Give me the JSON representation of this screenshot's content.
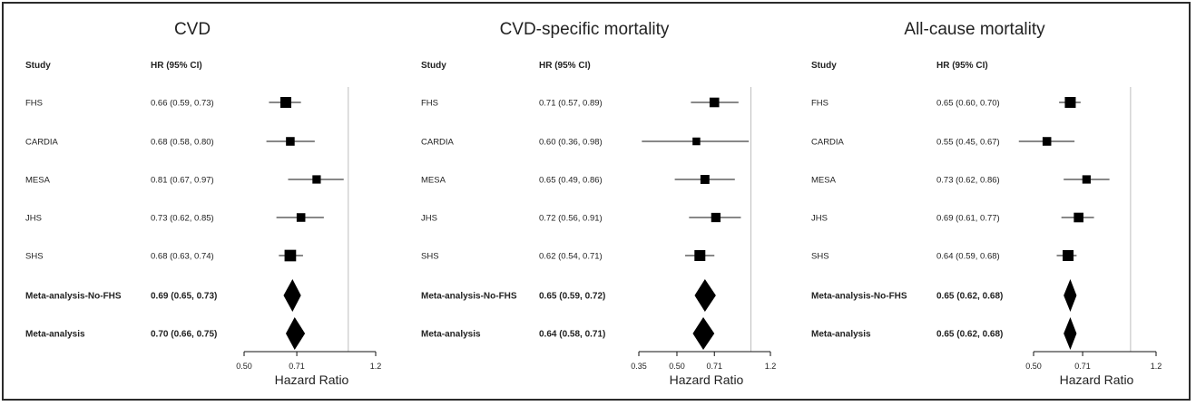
{
  "chart_data": [
    {
      "type": "forest",
      "title": "CVD",
      "col_study": "Study",
      "col_hr": "HR (95% CI)",
      "xlabel": "Hazard Ratio",
      "xlim": [
        0.5,
        1.2
      ],
      "xticks": [
        0.5,
        0.71,
        1.2
      ],
      "xtick_labels": [
        "0.50",
        "0.71",
        "1.2"
      ],
      "reference_line": 1.0,
      "rows": [
        {
          "study": "FHS",
          "label": "0.66 (0.59, 0.73)",
          "hr": 0.66,
          "lo": 0.59,
          "hi": 0.73,
          "kind": "study",
          "weight": 1.0
        },
        {
          "study": "CARDIA",
          "label": "0.68 (0.58, 0.80)",
          "hr": 0.68,
          "lo": 0.58,
          "hi": 0.8,
          "kind": "study",
          "weight": 0.65
        },
        {
          "study": "MESA",
          "label": "0.81 (0.67, 0.97)",
          "hr": 0.81,
          "lo": 0.67,
          "hi": 0.97,
          "kind": "study",
          "weight": 0.6
        },
        {
          "study": "JHS",
          "label": "0.73 (0.62, 0.85)",
          "hr": 0.73,
          "lo": 0.62,
          "hi": 0.85,
          "kind": "study",
          "weight": 0.65
        },
        {
          "study": "SHS",
          "label": "0.68 (0.63, 0.74)",
          "hr": 0.68,
          "lo": 0.63,
          "hi": 0.74,
          "kind": "study",
          "weight": 1.1
        },
        {
          "study": "Meta-analysis-No-FHS",
          "label": "0.69 (0.65, 0.73)",
          "hr": 0.69,
          "lo": 0.65,
          "hi": 0.73,
          "kind": "summary"
        },
        {
          "study": "Meta-analysis",
          "label": "0.70 (0.66, 0.75)",
          "hr": 0.7,
          "lo": 0.66,
          "hi": 0.75,
          "kind": "summary"
        }
      ]
    },
    {
      "type": "forest",
      "title": "CVD-specific mortality",
      "col_study": "Study",
      "col_hr": "HR (95% CI)",
      "xlabel": "Hazard Ratio",
      "xlim": [
        0.35,
        1.2
      ],
      "xticks": [
        0.35,
        0.5,
        0.71,
        1.2
      ],
      "xtick_labels": [
        "0.35",
        "0.50",
        "0.71",
        "1.2"
      ],
      "reference_line": 1.0,
      "rows": [
        {
          "study": "FHS",
          "label": "0.71 (0.57, 0.89)",
          "hr": 0.71,
          "lo": 0.57,
          "hi": 0.89,
          "kind": "study",
          "weight": 0.8
        },
        {
          "study": "CARDIA",
          "label": "0.60 (0.36, 0.98)",
          "hr": 0.6,
          "lo": 0.36,
          "hi": 0.98,
          "kind": "study",
          "weight": 0.5
        },
        {
          "study": "MESA",
          "label": "0.65 (0.49, 0.86)",
          "hr": 0.65,
          "lo": 0.49,
          "hi": 0.86,
          "kind": "study",
          "weight": 0.7
        },
        {
          "study": "JHS",
          "label": "0.72 (0.56, 0.91)",
          "hr": 0.72,
          "lo": 0.56,
          "hi": 0.91,
          "kind": "study",
          "weight": 0.75
        },
        {
          "study": "SHS",
          "label": "0.62 (0.54, 0.71)",
          "hr": 0.62,
          "lo": 0.54,
          "hi": 0.71,
          "kind": "study",
          "weight": 1.0
        },
        {
          "study": "Meta-analysis-No-FHS",
          "label": "0.65 (0.59, 0.72)",
          "hr": 0.65,
          "lo": 0.59,
          "hi": 0.72,
          "kind": "summary"
        },
        {
          "study": "Meta-analysis",
          "label": "0.64 (0.58, 0.71)",
          "hr": 0.64,
          "lo": 0.58,
          "hi": 0.71,
          "kind": "summary"
        }
      ]
    },
    {
      "type": "forest",
      "title": "All-cause mortality",
      "col_study": "Study",
      "col_hr": "HR (95% CI)",
      "xlabel": "Hazard Ratio",
      "xlim": [
        0.5,
        1.2
      ],
      "xticks": [
        0.5,
        0.71,
        1.2
      ],
      "xtick_labels": [
        "0.50",
        "0.71",
        "1.2"
      ],
      "reference_line": 1.0,
      "rows": [
        {
          "study": "FHS",
          "label": "0.65 (0.60, 0.70)",
          "hr": 0.65,
          "lo": 0.6,
          "hi": 0.7,
          "kind": "study",
          "weight": 1.0
        },
        {
          "study": "CARDIA",
          "label": "0.55 (0.45, 0.67)",
          "hr": 0.55,
          "lo": 0.45,
          "hi": 0.67,
          "kind": "study",
          "weight": 0.65
        },
        {
          "study": "MESA",
          "label": "0.73 (0.62, 0.86)",
          "hr": 0.73,
          "lo": 0.62,
          "hi": 0.86,
          "kind": "study",
          "weight": 0.6
        },
        {
          "study": "JHS",
          "label": "0.69 (0.61, 0.77)",
          "hr": 0.69,
          "lo": 0.61,
          "hi": 0.77,
          "kind": "study",
          "weight": 0.8
        },
        {
          "study": "SHS",
          "label": "0.64 (0.59, 0.68)",
          "hr": 0.64,
          "lo": 0.59,
          "hi": 0.68,
          "kind": "study",
          "weight": 1.0
        },
        {
          "study": "Meta-analysis-No-FHS",
          "label": "0.65 (0.62, 0.68)",
          "hr": 0.65,
          "lo": 0.62,
          "hi": 0.68,
          "kind": "summary"
        },
        {
          "study": "Meta-analysis",
          "label": "0.65 (0.62, 0.68)",
          "hr": 0.65,
          "lo": 0.62,
          "hi": 0.68,
          "kind": "summary"
        }
      ]
    }
  ]
}
